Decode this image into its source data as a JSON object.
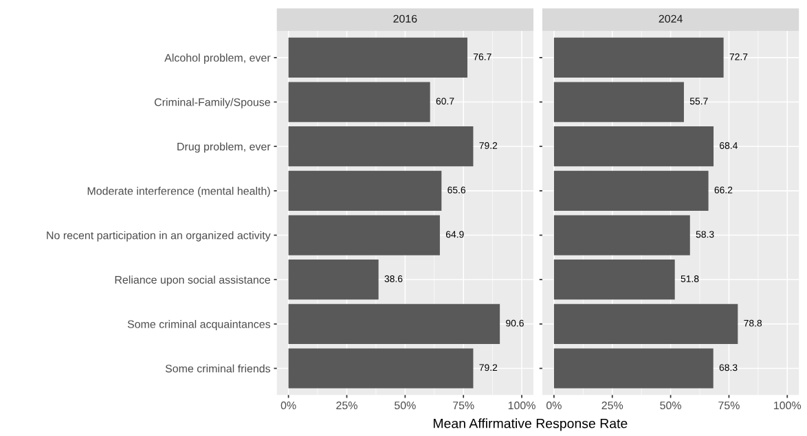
{
  "chart_data": [
    {
      "type": "bar",
      "orientation": "horizontal",
      "title": "2016",
      "xlabel": "Mean Affirmative Response Rate",
      "categories": [
        "Alcohol problem, ever",
        "Criminal-Family/Spouse",
        "Drug problem, ever",
        "Moderate interference (mental health)",
        "No recent participation in an organized activity",
        "Reliance upon social assistance",
        "Some criminal acquaintances",
        "Some criminal friends"
      ],
      "values": [
        76.7,
        60.7,
        79.2,
        65.6,
        64.9,
        38.6,
        90.6,
        79.2
      ],
      "color": "#595959",
      "data_labels": true,
      "grid": true,
      "xlim": [
        -5,
        105
      ],
      "xticks": [
        {
          "value": 0,
          "label": "0%"
        },
        {
          "value": 25,
          "label": "25%"
        },
        {
          "value": 50,
          "label": "50%"
        },
        {
          "value": 75,
          "label": "75%"
        },
        {
          "value": 100,
          "label": "100%"
        }
      ]
    },
    {
      "type": "bar",
      "orientation": "horizontal",
      "title": "2024",
      "categories": [
        null,
        null,
        null,
        null,
        null,
        null,
        null,
        null
      ],
      "values": [
        72.7,
        55.7,
        68.4,
        66.2,
        58.3,
        51.8,
        78.8,
        68.3
      ],
      "color": "#595959",
      "data_labels": true,
      "grid": true,
      "tick_labels": "x",
      "xlim": [
        -5,
        105
      ],
      "xticks": [
        {
          "value": 0,
          "label": "0%"
        },
        {
          "value": 25,
          "label": "25%"
        },
        {
          "value": 50,
          "label": "50%"
        },
        {
          "value": 75,
          "label": "75%"
        },
        {
          "value": 100,
          "label": "100%"
        }
      ]
    }
  ]
}
